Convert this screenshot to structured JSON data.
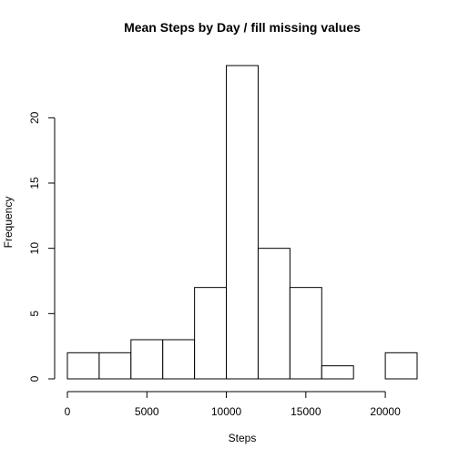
{
  "chart_data": {
    "type": "bar",
    "title": "Mean Steps by Day / fill missing values",
    "xlabel": "Steps",
    "ylabel": "Frequency",
    "bins": [
      {
        "from": 0,
        "to": 2000,
        "count": 2
      },
      {
        "from": 2000,
        "to": 4000,
        "count": 2
      },
      {
        "from": 4000,
        "to": 6000,
        "count": 3
      },
      {
        "from": 6000,
        "to": 8000,
        "count": 3
      },
      {
        "from": 8000,
        "to": 10000,
        "count": 7
      },
      {
        "from": 10000,
        "to": 12000,
        "count": 24
      },
      {
        "from": 12000,
        "to": 14000,
        "count": 10
      },
      {
        "from": 14000,
        "to": 16000,
        "count": 7
      },
      {
        "from": 16000,
        "to": 18000,
        "count": 1
      },
      {
        "from": 18000,
        "to": 20000,
        "count": 0
      },
      {
        "from": 20000,
        "to": 22000,
        "count": 2
      }
    ],
    "xlim": [
      0,
      22000
    ],
    "ylim": [
      0,
      24
    ],
    "x_ticks": [
      0,
      5000,
      10000,
      15000,
      20000
    ],
    "x_tick_labels": [
      "0",
      "5000",
      "10000",
      "15000",
      "20000"
    ],
    "y_ticks": [
      0,
      5,
      10,
      15,
      20
    ],
    "y_tick_labels": [
      "0",
      "5",
      "10",
      "15",
      "20"
    ],
    "grid": false,
    "legend": "none"
  }
}
